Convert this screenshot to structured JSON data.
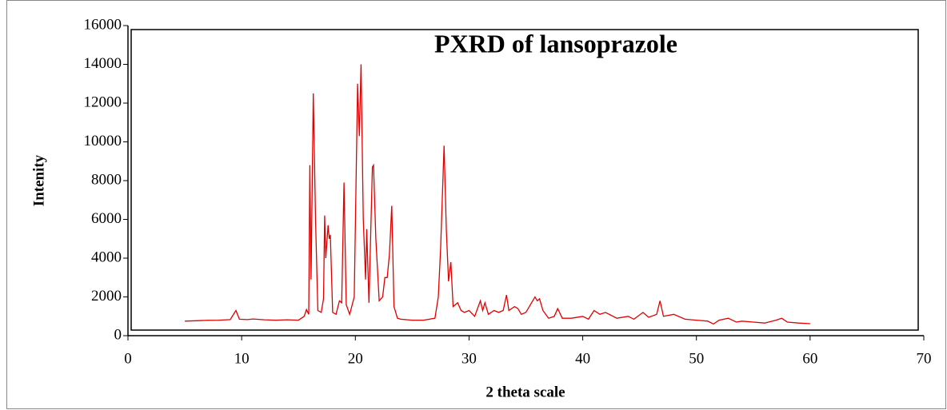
{
  "chart_data": {
    "type": "line",
    "title": "PXRD  of lansoprazole",
    "x_label": "2 theta scale",
    "y_label": "Intenity",
    "xlim": [
      0,
      70
    ],
    "xticks": [
      0,
      10,
      20,
      30,
      40,
      50,
      60,
      70
    ],
    "ylim": [
      0,
      16000
    ],
    "yticks": [
      0,
      2000,
      4000,
      6000,
      8000,
      10000,
      12000,
      14000,
      16000
    ],
    "grid": false,
    "x": [
      5,
      6,
      7,
      8,
      9,
      9.5,
      9.8,
      10.5,
      11,
      12,
      13,
      14,
      15,
      15.5,
      15.7,
      15.9,
      16.0,
      16.1,
      16.3,
      16.5,
      16.7,
      17.0,
      17.2,
      17.3,
      17.4,
      17.6,
      17.7,
      17.8,
      18.0,
      18.3,
      18.6,
      18.8,
      19.0,
      19.2,
      19.5,
      19.9,
      20.2,
      20.35,
      20.5,
      20.7,
      20.9,
      21.0,
      21.2,
      21.5,
      21.6,
      21.8,
      22.1,
      22.4,
      22.6,
      22.8,
      23.0,
      23.2,
      23.4,
      23.7,
      24,
      25,
      26,
      27,
      27.3,
      27.5,
      27.8,
      28.0,
      28.2,
      28.4,
      28.6,
      29,
      29.3,
      29.6,
      30,
      30.5,
      31.0,
      31.2,
      31.4,
      31.7,
      32.2,
      32.6,
      33.0,
      33.3,
      33.5,
      34.0,
      34.3,
      34.6,
      35,
      35.8,
      36.0,
      36.2,
      36.5,
      37,
      37.5,
      37.8,
      38.2,
      39,
      40,
      40.5,
      41,
      41.5,
      42,
      43,
      44,
      44.5,
      45.3,
      45.8,
      46.5,
      46.8,
      47.1,
      48,
      49,
      50,
      51,
      51.5,
      52,
      52.8,
      53.5,
      54,
      55,
      56,
      57,
      57.5,
      58,
      59,
      60
    ],
    "series": [
      {
        "name": "lansoprazole",
        "color": "#e00000",
        "values": [
          750,
          770,
          790,
          800,
          830,
          1300,
          850,
          830,
          860,
          820,
          800,
          820,
          800,
          1000,
          1350,
          1100,
          8800,
          2900,
          12500,
          6000,
          1300,
          1200,
          1900,
          6200,
          4000,
          5700,
          5000,
          5200,
          1200,
          1100,
          1800,
          1700,
          7900,
          1600,
          1100,
          2000,
          13000,
          10300,
          14000,
          6000,
          2900,
          5500,
          1700,
          8700,
          8800,
          5000,
          1800,
          2000,
          3000,
          3000,
          4200,
          6700,
          1500,
          900,
          850,
          800,
          800,
          900,
          2000,
          4500,
          9800,
          5500,
          2800,
          3800,
          1500,
          1700,
          1300,
          1200,
          1300,
          1000,
          1800,
          1300,
          1700,
          1100,
          1300,
          1200,
          1300,
          2100,
          1300,
          1500,
          1400,
          1100,
          1200,
          2000,
          1800,
          1900,
          1300,
          900,
          1000,
          1400,
          900,
          900,
          1000,
          850,
          1300,
          1100,
          1200,
          900,
          1000,
          850,
          1200,
          950,
          1100,
          1800,
          1000,
          1100,
          850,
          800,
          750,
          600,
          800,
          900,
          700,
          750,
          700,
          650,
          800,
          900,
          700,
          650,
          620
        ]
      }
    ]
  }
}
